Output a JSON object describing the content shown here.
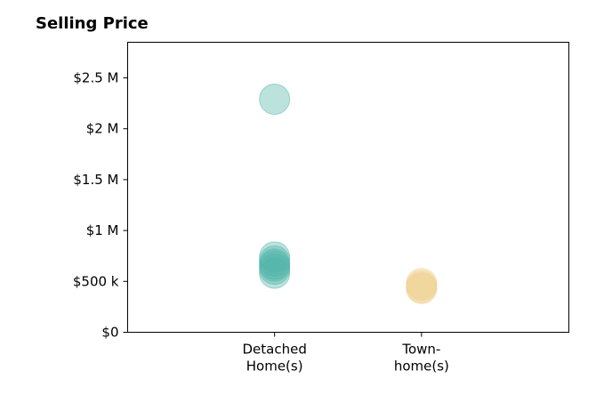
{
  "chart_data": {
    "type": "scatter",
    "title": "Selling Price",
    "xlabel": "",
    "ylabel": "",
    "categories": [
      "Detached\nHome(s)",
      "Town-\nhome(s)"
    ],
    "y_ticks": [
      {
        "value": 0,
        "label": "$0"
      },
      {
        "value": 500000,
        "label": "$500 k"
      },
      {
        "value": 1000000,
        "label": "$1 M"
      },
      {
        "value": 1500000,
        "label": "$1.5 M"
      },
      {
        "value": 2000000,
        "label": "$2 M"
      },
      {
        "value": 2500000,
        "label": "$2.5 M"
      }
    ],
    "ylim": [
      0,
      2850000
    ],
    "grid": false,
    "series": [
      {
        "category": "Detached\nHome(s)",
        "color": "#4fb3a9",
        "values": [
          2290000,
          740000,
          700000,
          670000,
          650000,
          620000,
          580000
        ]
      },
      {
        "category": "Town-\nhome(s)",
        "color": "#efd08e",
        "values": [
          480000,
          460000,
          440000,
          430000
        ]
      }
    ]
  }
}
